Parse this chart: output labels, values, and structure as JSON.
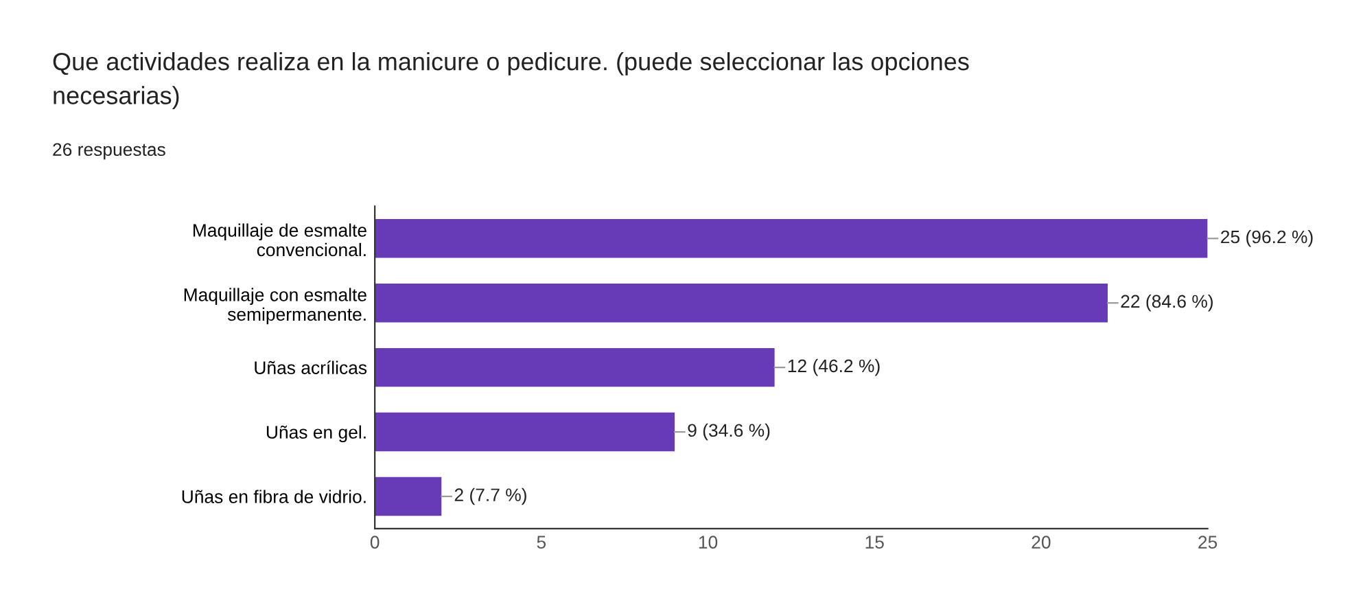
{
  "chart_data": {
    "type": "bar",
    "orientation": "horizontal",
    "title": "Que actividades realiza en la manicure o pedicure. (puede seleccionar las opciones\nnecesarias)",
    "subtitle": "26 respuestas",
    "categories": [
      "Maquillaje de esmalte\nconvencional.",
      "Maquillaje con esmalte\nsemipermanente.",
      "Uñas acrílicas",
      "Uñas en gel.",
      "Uñas en fibra de vidrio."
    ],
    "values": [
      25,
      22,
      12,
      9,
      2
    ],
    "value_labels": [
      "25 (96.2 %)",
      "22 (84.6 %)",
      "12 (46.2 %)",
      "9 (34.6 %)",
      "2 (7.7 %)"
    ],
    "color": "#673ab7",
    "xlim": [
      0,
      25
    ],
    "xticks": [
      0,
      5,
      10,
      15,
      20,
      25
    ],
    "grid": false,
    "legend": false
  }
}
